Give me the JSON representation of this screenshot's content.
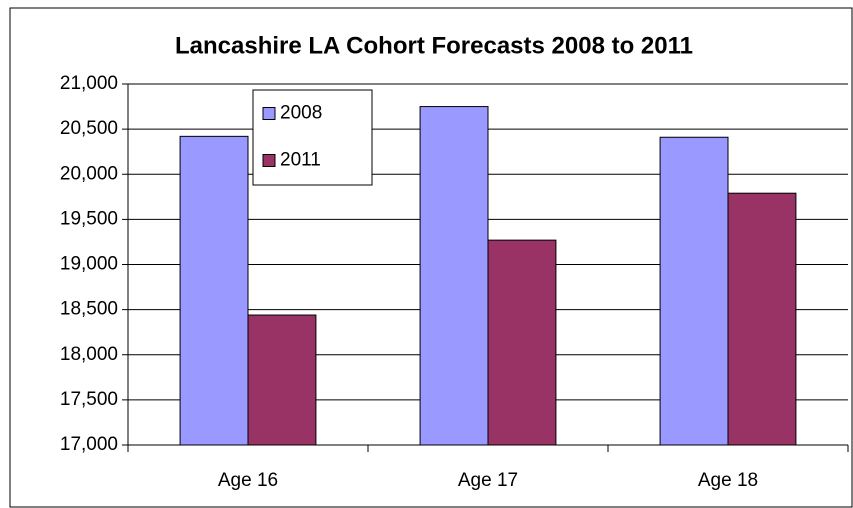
{
  "chart_data": {
    "type": "bar",
    "title": "Lancashire LA Cohort Forecasts 2008 to 2011",
    "categories": [
      "Age 16",
      "Age 17",
      "Age 18"
    ],
    "series": [
      {
        "name": "2008",
        "color": "#9999ff",
        "values": [
          20420,
          20750,
          20410
        ]
      },
      {
        "name": "2011",
        "color": "#993366",
        "values": [
          18440,
          19270,
          19790
        ]
      }
    ],
    "ylim": [
      17000,
      21000
    ],
    "yticks": [
      {
        "value": 17000,
        "label": "17,000"
      },
      {
        "value": 17500,
        "label": "17,500"
      },
      {
        "value": 18000,
        "label": "18,000"
      },
      {
        "value": 18500,
        "label": "18,500"
      },
      {
        "value": 19000,
        "label": "19,000"
      },
      {
        "value": 19500,
        "label": "19,500"
      },
      {
        "value": 20000,
        "label": "20,000"
      },
      {
        "value": 20500,
        "label": "20,500"
      },
      {
        "value": 21000,
        "label": "21,000"
      }
    ],
    "grid": true,
    "legend": "upper-left"
  }
}
